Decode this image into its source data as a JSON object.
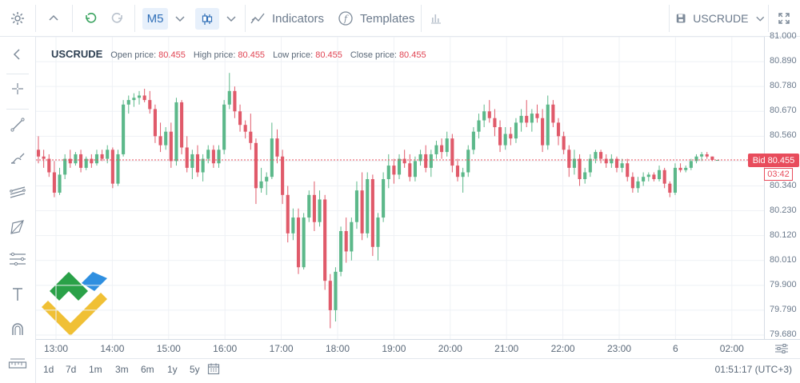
{
  "toolbar": {
    "timeframe": "M5",
    "indicators_label": "Indicators",
    "templates_label": "Templates",
    "symbol": "USCRUDE"
  },
  "info": {
    "symbol": "USCRUDE",
    "open_label": "Open price:",
    "open_value": "80.455",
    "high_label": "High price:",
    "high_value": "80.455",
    "low_label": "Low price:",
    "low_value": "80.455",
    "close_label": "Close price:",
    "close_value": "80.455"
  },
  "price_axis": {
    "labels": [
      "81.000",
      "80.890",
      "80.780",
      "80.670",
      "80.560",
      "80.450",
      "80.340",
      "80.230",
      "80.120",
      "80.010",
      "79.900",
      "79.790",
      "79.680"
    ]
  },
  "bid": {
    "label": "Bid 80.455",
    "timer": "03:42",
    "price": 80.455
  },
  "time_axis": {
    "labels": [
      "13:00",
      "14:00",
      "15:00",
      "16:00",
      "17:00",
      "18:00",
      "19:00",
      "20:00",
      "21:00",
      "22:00",
      "23:00",
      "6",
      "02:00"
    ]
  },
  "ranges": [
    "1d",
    "7d",
    "1m",
    "3m",
    "6m",
    "1y",
    "5y"
  ],
  "clock": "01:51:17 (UTC+3)",
  "colors": {
    "up": "#5cb88a",
    "down": "#e05a6a",
    "bid": "#e84c5c",
    "accent": "#2f6fb8"
  },
  "icons": {
    "settings": "gear-icon",
    "collapse": "chevron-up-icon",
    "undo": "undo-icon",
    "redo": "redo-icon",
    "timeframe_dropdown": "chevron-down-icon",
    "chart_type": "candlestick-icon",
    "indicators": "indicators-icon",
    "templates": "function-icon",
    "volume": "bars-icon",
    "save": "save-icon",
    "fullscreen": "fullscreen-icon",
    "back": "chevron-left-icon",
    "crosshair": "crosshair-icon",
    "trend_line": "trend-line-icon",
    "brush": "brush-icon",
    "channel": "channel-icon",
    "shape": "polygon-icon",
    "fibonacci": "fibonacci-icon",
    "text": "text-icon",
    "magnet": "magnet-icon",
    "ruler": "ruler-icon",
    "calendar": "calendar-icon",
    "axis_settings": "sliders-icon",
    "logo": "brand-logo"
  },
  "chart_data": {
    "type": "candlestick",
    "interval": "M5",
    "ylim": [
      79.68,
      81.0
    ],
    "x_ticks": [
      "13:00",
      "14:00",
      "15:00",
      "16:00",
      "17:00",
      "18:00",
      "19:00",
      "20:00",
      "21:00",
      "22:00",
      "23:00",
      "6",
      "02:00"
    ],
    "candles": [
      {
        "o": 80.5,
        "h": 80.56,
        "l": 80.44,
        "c": 80.47
      },
      {
        "o": 80.47,
        "h": 80.5,
        "l": 80.42,
        "c": 80.46
      },
      {
        "o": 80.46,
        "h": 80.48,
        "l": 80.38,
        "c": 80.4
      },
      {
        "o": 80.4,
        "h": 80.45,
        "l": 80.29,
        "c": 80.31
      },
      {
        "o": 80.31,
        "h": 80.42,
        "l": 80.3,
        "c": 80.39
      },
      {
        "o": 80.39,
        "h": 80.48,
        "l": 80.37,
        "c": 80.46
      },
      {
        "o": 80.46,
        "h": 80.5,
        "l": 80.42,
        "c": 80.44
      },
      {
        "o": 80.44,
        "h": 80.49,
        "l": 80.43,
        "c": 80.48
      },
      {
        "o": 80.48,
        "h": 80.5,
        "l": 80.4,
        "c": 80.42
      },
      {
        "o": 80.42,
        "h": 80.47,
        "l": 80.41,
        "c": 80.46
      },
      {
        "o": 80.46,
        "h": 80.48,
        "l": 80.42,
        "c": 80.44
      },
      {
        "o": 80.44,
        "h": 80.5,
        "l": 80.43,
        "c": 80.48
      },
      {
        "o": 80.48,
        "h": 80.5,
        "l": 80.45,
        "c": 80.46
      },
      {
        "o": 80.46,
        "h": 80.52,
        "l": 80.44,
        "c": 80.5
      },
      {
        "o": 80.5,
        "h": 80.51,
        "l": 80.33,
        "c": 80.35
      },
      {
        "o": 80.35,
        "h": 80.5,
        "l": 80.34,
        "c": 80.48
      },
      {
        "o": 80.48,
        "h": 80.72,
        "l": 80.47,
        "c": 80.7
      },
      {
        "o": 80.7,
        "h": 80.74,
        "l": 80.66,
        "c": 80.72
      },
      {
        "o": 80.72,
        "h": 80.75,
        "l": 80.69,
        "c": 80.73
      },
      {
        "o": 80.73,
        "h": 80.76,
        "l": 80.7,
        "c": 80.74
      },
      {
        "o": 80.74,
        "h": 80.77,
        "l": 80.71,
        "c": 80.72
      },
      {
        "o": 80.72,
        "h": 80.76,
        "l": 80.66,
        "c": 80.68
      },
      {
        "o": 80.68,
        "h": 80.7,
        "l": 80.53,
        "c": 80.56
      },
      {
        "o": 80.56,
        "h": 80.62,
        "l": 80.49,
        "c": 80.52
      },
      {
        "o": 80.52,
        "h": 80.6,
        "l": 80.5,
        "c": 80.58
      },
      {
        "o": 80.58,
        "h": 80.62,
        "l": 80.42,
        "c": 80.45
      },
      {
        "o": 80.45,
        "h": 80.73,
        "l": 80.43,
        "c": 80.71
      },
      {
        "o": 80.71,
        "h": 80.72,
        "l": 80.48,
        "c": 80.51
      },
      {
        "o": 80.51,
        "h": 80.56,
        "l": 80.4,
        "c": 80.42
      },
      {
        "o": 80.42,
        "h": 80.5,
        "l": 80.37,
        "c": 80.48
      },
      {
        "o": 80.48,
        "h": 80.52,
        "l": 80.38,
        "c": 80.4
      },
      {
        "o": 80.4,
        "h": 80.48,
        "l": 80.36,
        "c": 80.46
      },
      {
        "o": 80.46,
        "h": 80.52,
        "l": 80.44,
        "c": 80.5
      },
      {
        "o": 80.5,
        "h": 80.52,
        "l": 80.42,
        "c": 80.44
      },
      {
        "o": 80.44,
        "h": 80.52,
        "l": 80.42,
        "c": 80.5
      },
      {
        "o": 80.5,
        "h": 80.72,
        "l": 80.48,
        "c": 80.7
      },
      {
        "o": 80.7,
        "h": 80.84,
        "l": 80.68,
        "c": 80.76
      },
      {
        "o": 80.76,
        "h": 80.78,
        "l": 80.64,
        "c": 80.67
      },
      {
        "o": 80.67,
        "h": 80.7,
        "l": 80.58,
        "c": 80.61
      },
      {
        "o": 80.61,
        "h": 80.63,
        "l": 80.55,
        "c": 80.58
      },
      {
        "o": 80.58,
        "h": 80.66,
        "l": 80.5,
        "c": 80.53
      },
      {
        "o": 80.53,
        "h": 80.55,
        "l": 80.26,
        "c": 80.33
      },
      {
        "o": 80.33,
        "h": 80.42,
        "l": 80.31,
        "c": 80.36
      },
      {
        "o": 80.36,
        "h": 80.4,
        "l": 80.3,
        "c": 80.38
      },
      {
        "o": 80.38,
        "h": 80.62,
        "l": 80.37,
        "c": 80.55
      },
      {
        "o": 80.55,
        "h": 80.59,
        "l": 80.44,
        "c": 80.47
      },
      {
        "o": 80.47,
        "h": 80.5,
        "l": 80.26,
        "c": 80.3
      },
      {
        "o": 80.3,
        "h": 80.34,
        "l": 80.09,
        "c": 80.13
      },
      {
        "o": 80.13,
        "h": 80.24,
        "l": 80.1,
        "c": 80.2
      },
      {
        "o": 80.2,
        "h": 80.24,
        "l": 79.95,
        "c": 79.98
      },
      {
        "o": 79.98,
        "h": 80.22,
        "l": 79.97,
        "c": 80.2
      },
      {
        "o": 80.2,
        "h": 80.32,
        "l": 80.18,
        "c": 80.3
      },
      {
        "o": 80.3,
        "h": 80.36,
        "l": 80.14,
        "c": 80.18
      },
      {
        "o": 80.18,
        "h": 80.32,
        "l": 80.16,
        "c": 80.28
      },
      {
        "o": 80.28,
        "h": 80.3,
        "l": 79.88,
        "c": 79.92
      },
      {
        "o": 79.92,
        "h": 79.95,
        "l": 79.71,
        "c": 79.79
      },
      {
        "o": 79.79,
        "h": 79.98,
        "l": 79.74,
        "c": 79.96
      },
      {
        "o": 79.96,
        "h": 80.16,
        "l": 79.94,
        "c": 80.14
      },
      {
        "o": 80.14,
        "h": 80.2,
        "l": 80.0,
        "c": 80.05
      },
      {
        "o": 80.05,
        "h": 80.2,
        "l": 80.01,
        "c": 80.18
      },
      {
        "o": 80.18,
        "h": 80.36,
        "l": 80.15,
        "c": 80.32
      },
      {
        "o": 80.32,
        "h": 80.4,
        "l": 80.1,
        "c": 80.13
      },
      {
        "o": 80.13,
        "h": 80.4,
        "l": 80.11,
        "c": 80.37
      },
      {
        "o": 80.37,
        "h": 80.39,
        "l": 80.03,
        "c": 80.07
      },
      {
        "o": 80.07,
        "h": 80.22,
        "l": 80.01,
        "c": 80.2
      },
      {
        "o": 80.2,
        "h": 80.4,
        "l": 80.18,
        "c": 80.37
      },
      {
        "o": 80.37,
        "h": 80.48,
        "l": 80.33,
        "c": 80.43
      },
      {
        "o": 80.43,
        "h": 80.46,
        "l": 80.35,
        "c": 80.39
      },
      {
        "o": 80.39,
        "h": 80.48,
        "l": 80.37,
        "c": 80.46
      },
      {
        "o": 80.46,
        "h": 80.5,
        "l": 80.42,
        "c": 80.44
      },
      {
        "o": 80.44,
        "h": 80.48,
        "l": 80.36,
        "c": 80.38
      },
      {
        "o": 80.38,
        "h": 80.47,
        "l": 80.36,
        "c": 80.45
      },
      {
        "o": 80.45,
        "h": 80.5,
        "l": 80.43,
        "c": 80.48
      },
      {
        "o": 80.48,
        "h": 80.52,
        "l": 80.4,
        "c": 80.42
      },
      {
        "o": 80.42,
        "h": 80.5,
        "l": 80.38,
        "c": 80.48
      },
      {
        "o": 80.48,
        "h": 80.54,
        "l": 80.46,
        "c": 80.52
      },
      {
        "o": 80.52,
        "h": 80.55,
        "l": 80.46,
        "c": 80.49
      },
      {
        "o": 80.49,
        "h": 80.58,
        "l": 80.47,
        "c": 80.55
      },
      {
        "o": 80.55,
        "h": 80.57,
        "l": 80.4,
        "c": 80.43
      },
      {
        "o": 80.43,
        "h": 80.46,
        "l": 80.36,
        "c": 80.38
      },
      {
        "o": 80.38,
        "h": 80.42,
        "l": 80.31,
        "c": 80.4
      },
      {
        "o": 80.4,
        "h": 80.52,
        "l": 80.38,
        "c": 80.5
      },
      {
        "o": 80.5,
        "h": 80.6,
        "l": 80.48,
        "c": 80.58
      },
      {
        "o": 80.58,
        "h": 80.66,
        "l": 80.55,
        "c": 80.63
      },
      {
        "o": 80.63,
        "h": 80.7,
        "l": 80.6,
        "c": 80.67
      },
      {
        "o": 80.67,
        "h": 80.72,
        "l": 80.62,
        "c": 80.64
      },
      {
        "o": 80.64,
        "h": 80.68,
        "l": 80.56,
        "c": 80.6
      },
      {
        "o": 80.6,
        "h": 80.63,
        "l": 80.49,
        "c": 80.52
      },
      {
        "o": 80.52,
        "h": 80.6,
        "l": 80.5,
        "c": 80.57
      },
      {
        "o": 80.57,
        "h": 80.6,
        "l": 80.52,
        "c": 80.55
      },
      {
        "o": 80.55,
        "h": 80.64,
        "l": 80.53,
        "c": 80.62
      },
      {
        "o": 80.62,
        "h": 80.68,
        "l": 80.58,
        "c": 80.65
      },
      {
        "o": 80.65,
        "h": 80.72,
        "l": 80.6,
        "c": 80.62
      },
      {
        "o": 80.62,
        "h": 80.68,
        "l": 80.58,
        "c": 80.66
      },
      {
        "o": 80.66,
        "h": 80.7,
        "l": 80.62,
        "c": 80.64
      },
      {
        "o": 80.64,
        "h": 80.68,
        "l": 80.49,
        "c": 80.52
      },
      {
        "o": 80.52,
        "h": 80.74,
        "l": 80.5,
        "c": 80.7
      },
      {
        "o": 80.7,
        "h": 80.72,
        "l": 80.6,
        "c": 80.62
      },
      {
        "o": 80.62,
        "h": 80.64,
        "l": 80.52,
        "c": 80.56
      },
      {
        "o": 80.56,
        "h": 80.58,
        "l": 80.48,
        "c": 80.5
      },
      {
        "o": 80.5,
        "h": 80.52,
        "l": 80.38,
        "c": 80.42
      },
      {
        "o": 80.42,
        "h": 80.5,
        "l": 80.39,
        "c": 80.46
      },
      {
        "o": 80.46,
        "h": 80.48,
        "l": 80.34,
        "c": 80.37
      },
      {
        "o": 80.37,
        "h": 80.42,
        "l": 80.35,
        "c": 80.4
      },
      {
        "o": 80.4,
        "h": 80.48,
        "l": 80.38,
        "c": 80.46
      },
      {
        "o": 80.46,
        "h": 80.5,
        "l": 80.44,
        "c": 80.49
      },
      {
        "o": 80.49,
        "h": 80.5,
        "l": 80.44,
        "c": 80.46
      },
      {
        "o": 80.46,
        "h": 80.48,
        "l": 80.42,
        "c": 80.44
      },
      {
        "o": 80.44,
        "h": 80.48,
        "l": 80.42,
        "c": 80.46
      },
      {
        "o": 80.46,
        "h": 80.47,
        "l": 80.4,
        "c": 80.42
      },
      {
        "o": 80.42,
        "h": 80.46,
        "l": 80.4,
        "c": 80.44
      },
      {
        "o": 80.44,
        "h": 80.46,
        "l": 80.36,
        "c": 80.38
      },
      {
        "o": 80.38,
        "h": 80.4,
        "l": 80.31,
        "c": 80.33
      },
      {
        "o": 80.33,
        "h": 80.38,
        "l": 80.31,
        "c": 80.36
      },
      {
        "o": 80.36,
        "h": 80.4,
        "l": 80.34,
        "c": 80.38
      },
      {
        "o": 80.38,
        "h": 80.4,
        "l": 80.36,
        "c": 80.39
      },
      {
        "o": 80.39,
        "h": 80.4,
        "l": 80.36,
        "c": 80.37
      },
      {
        "o": 80.37,
        "h": 80.43,
        "l": 80.36,
        "c": 80.41
      },
      {
        "o": 80.41,
        "h": 80.42,
        "l": 80.33,
        "c": 80.35
      },
      {
        "o": 80.35,
        "h": 80.36,
        "l": 80.29,
        "c": 80.31
      },
      {
        "o": 80.31,
        "h": 80.44,
        "l": 80.3,
        "c": 80.42
      },
      {
        "o": 80.42,
        "h": 80.44,
        "l": 80.4,
        "c": 80.41
      },
      {
        "o": 80.41,
        "h": 80.43,
        "l": 80.4,
        "c": 80.42
      },
      {
        "o": 80.42,
        "h": 80.46,
        "l": 80.41,
        "c": 80.45
      },
      {
        "o": 80.45,
        "h": 80.48,
        "l": 80.44,
        "c": 80.47
      },
      {
        "o": 80.47,
        "h": 80.49,
        "l": 80.45,
        "c": 80.48
      },
      {
        "o": 80.48,
        "h": 80.49,
        "l": 80.46,
        "c": 80.47
      },
      {
        "o": 80.47,
        "h": 80.47,
        "l": 80.45,
        "c": 80.455
      },
      {
        "o": 80.455,
        "h": 80.455,
        "l": 80.455,
        "c": 80.455
      }
    ]
  }
}
